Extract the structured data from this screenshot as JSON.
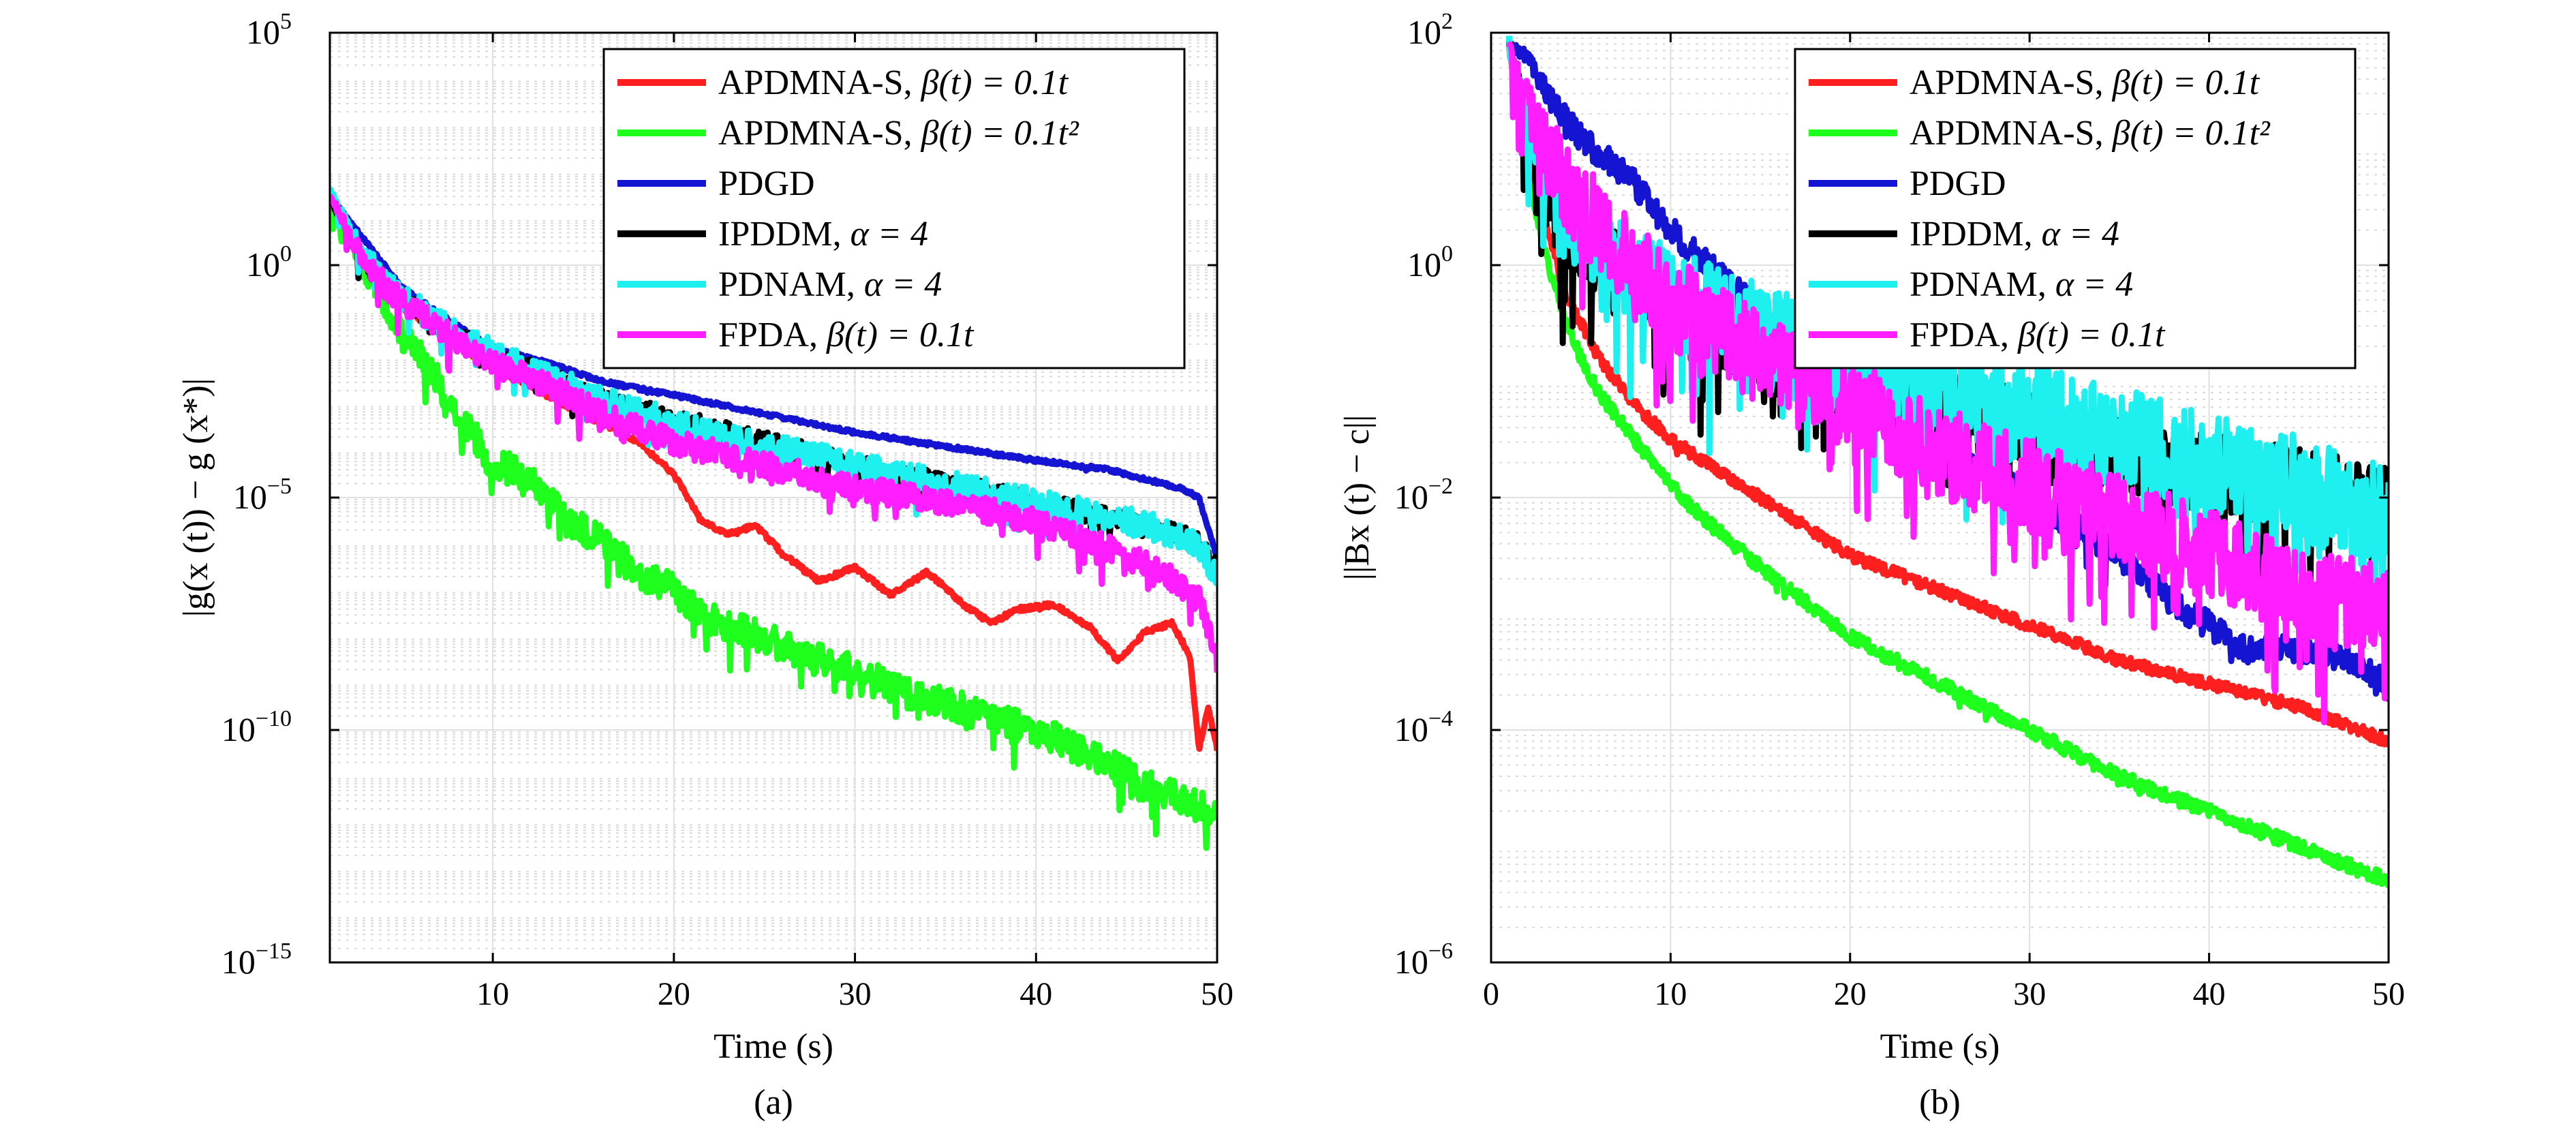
{
  "chart_data": [
    {
      "type": "line",
      "panel_label": "(a)",
      "xlabel": "Time (s)",
      "ylabel": "|g(x (t)) − g (x*)|",
      "ylog": true,
      "xlim": [
        1,
        50
      ],
      "ylim_exp": [
        -15,
        5
      ],
      "xticks": [
        10,
        20,
        30,
        40,
        50
      ],
      "yticks_exp": [
        -15,
        -10,
        -5,
        0,
        5
      ],
      "grid": true,
      "minor_grid": true,
      "legend_position": "top-right",
      "series": [
        {
          "name": "APDMNA-S, β(t) = 0.1t",
          "legend_main": "APDMNA-S, ",
          "legend_math": "β(t) = 0.1t",
          "color": "#ff1f1f",
          "x": [
            1,
            3,
            5,
            8,
            10,
            13,
            16,
            18,
            20,
            21.5,
            23,
            24.5,
            26,
            28,
            30,
            32,
            34,
            36,
            37.5,
            39,
            41,
            43,
            44.5,
            46,
            47.5,
            48.5,
            49,
            49.5,
            50
          ],
          "y_exp": [
            1.5,
            -0.1,
            -0.9,
            -1.7,
            -2.2,
            -2.8,
            -3.4,
            -3.8,
            -4.5,
            -5.5,
            -5.8,
            -5.6,
            -6.2,
            -6.8,
            -6.5,
            -7.1,
            -6.6,
            -7.3,
            -7.7,
            -7.4,
            -7.3,
            -7.8,
            -8.5,
            -7.9,
            -7.7,
            -8.4,
            -10.4,
            -9.5,
            -10.4
          ],
          "noise": 0.05
        },
        {
          "name": "APDMNA-S, β(t) = 0.1t²",
          "legend_main": "APDMNA-S, ",
          "legend_math": "β(t) = 0.1t²",
          "color": "#1eff1e",
          "x": [
            1,
            3,
            5,
            7,
            8.5,
            10,
            12,
            14,
            16,
            18,
            20,
            22,
            25,
            28,
            30,
            32,
            35,
            38,
            40,
            43,
            46,
            50
          ],
          "y_exp": [
            1.5,
            -0.1,
            -1.5,
            -2.5,
            -3.4,
            -4.3,
            -4.5,
            -5.5,
            -5.9,
            -6.6,
            -7.0,
            -7.6,
            -8.0,
            -8.5,
            -8.7,
            -9.1,
            -9.4,
            -9.8,
            -10.0,
            -10.5,
            -11.2,
            -11.8
          ],
          "noise": 0.35
        },
        {
          "name": "PDGD",
          "legend_main": "PDGD",
          "legend_math": "",
          "color": "#1414d2",
          "x": [
            1,
            3,
            5,
            8,
            10,
            13,
            16,
            20,
            25,
            30,
            35,
            40,
            44,
            46,
            48,
            49,
            50
          ],
          "y_exp": [
            1.5,
            0.5,
            -0.5,
            -1.3,
            -1.8,
            -2.1,
            -2.5,
            -2.8,
            -3.2,
            -3.6,
            -3.9,
            -4.2,
            -4.4,
            -4.6,
            -4.8,
            -5.0,
            -6.3
          ],
          "noise": 0.04
        },
        {
          "name": "IPDDM, α = 4",
          "legend_main": "IPDDM, ",
          "legend_math": "α = 4",
          "color": "#000000",
          "x": [
            1,
            3,
            5,
            8,
            10,
            13,
            16,
            20,
            25,
            30,
            35,
            40,
            45,
            48,
            49,
            50
          ],
          "y_exp": [
            1.4,
            0.0,
            -0.8,
            -1.5,
            -1.9,
            -2.4,
            -2.9,
            -3.3,
            -3.8,
            -4.3,
            -4.7,
            -5.1,
            -5.5,
            -5.8,
            -6.0,
            -6.5
          ],
          "noise": 0.22
        },
        {
          "name": "PDNAM, α = 4",
          "legend_main": "PDNAM, ",
          "legend_math": "α = 4",
          "color": "#1ef0f0",
          "x": [
            1,
            3,
            5,
            8,
            10,
            13,
            16,
            20,
            25,
            30,
            35,
            40,
            45,
            48,
            49,
            50
          ],
          "y_exp": [
            1.6,
            0.1,
            -0.7,
            -1.5,
            -1.9,
            -2.4,
            -2.9,
            -3.4,
            -3.9,
            -4.3,
            -4.7,
            -5.1,
            -5.5,
            -5.8,
            -6.1,
            -6.7
          ],
          "noise": 0.3
        },
        {
          "name": "FPDA, β(t) = 0.1t",
          "legend_main": "FPDA, ",
          "legend_math": "β(t) = 0.1t",
          "color": "#ff1eff",
          "x": [
            1,
            3,
            5,
            8,
            10,
            13,
            16,
            20,
            25,
            30,
            35,
            40,
            44,
            47,
            49,
            50
          ],
          "y_exp": [
            1.5,
            0.0,
            -0.8,
            -1.6,
            -2.1,
            -2.6,
            -3.2,
            -3.8,
            -4.3,
            -4.8,
            -5.1,
            -5.5,
            -6.1,
            -6.6,
            -7.2,
            -8.5
          ],
          "noise": 0.28
        }
      ]
    },
    {
      "type": "line",
      "panel_label": "(b)",
      "xlabel": "Time (s)",
      "ylabel": "||Bx (t) − c||",
      "ylog": true,
      "xlim": [
        0,
        50
      ],
      "ylim_exp": [
        -6,
        2
      ],
      "xticks": [
        0,
        10,
        20,
        30,
        40,
        50
      ],
      "yticks_exp": [
        -6,
        -4,
        -2,
        0,
        2
      ],
      "grid": true,
      "minor_grid": true,
      "legend_position": "top-right",
      "series": [
        {
          "name": "APDMNA-S, β(t) = 0.1t",
          "legend_main": "APDMNA-S, ",
          "legend_math": "β(t) = 0.1t",
          "color": "#ff1f1f",
          "x": [
            1,
            2,
            3,
            4,
            5,
            6,
            8,
            10,
            12,
            15,
            20,
            25,
            30,
            35,
            40,
            45,
            50
          ],
          "y_exp": [
            1.9,
            1.0,
            0.4,
            -0.2,
            -0.5,
            -0.8,
            -1.2,
            -1.5,
            -1.7,
            -2.0,
            -2.5,
            -2.8,
            -3.1,
            -3.4,
            -3.6,
            -3.8,
            -4.1
          ],
          "noise": 0.05
        },
        {
          "name": "APDMNA-S, β(t) = 0.1t²",
          "legend_main": "APDMNA-S, ",
          "legend_math": "β(t) = 0.1t²",
          "color": "#1eff1e",
          "x": [
            1,
            2,
            3,
            4,
            5,
            6,
            8,
            10,
            12,
            15,
            20,
            25,
            30,
            35,
            40,
            45,
            50
          ],
          "y_exp": [
            1.9,
            0.8,
            0.1,
            -0.4,
            -0.8,
            -1.1,
            -1.5,
            -1.9,
            -2.2,
            -2.6,
            -3.2,
            -3.6,
            -4.0,
            -4.4,
            -4.7,
            -5.0,
            -5.3
          ],
          "noise": 0.06
        },
        {
          "name": "PDGD",
          "legend_main": "PDGD",
          "legend_math": "",
          "color": "#1414d2",
          "x": [
            1,
            2,
            3,
            5,
            8,
            10,
            15,
            20,
            25,
            30,
            35,
            38,
            40,
            42,
            45,
            48,
            50
          ],
          "y_exp": [
            1.9,
            1.8,
            1.5,
            1.1,
            0.7,
            0.3,
            -0.4,
            -1.0,
            -1.5,
            -2.0,
            -2.5,
            -2.9,
            -3.1,
            -3.3,
            -3.3,
            -3.4,
            -3.6
          ],
          "noise": 0.12
        },
        {
          "name": "IPDDM, α = 4",
          "legend_main": "IPDDM, ",
          "legend_math": "α = 4",
          "color": "#000000",
          "x": [
            1,
            2,
            3,
            5,
            8,
            10,
            15,
            20,
            25,
            30,
            35,
            40,
            45,
            50
          ],
          "y_exp": [
            1.9,
            1.2,
            0.6,
            0.2,
            -0.2,
            -0.4,
            -0.7,
            -1.0,
            -1.2,
            -1.4,
            -1.6,
            -1.8,
            -1.9,
            -2.1
          ],
          "noise": 0.35
        },
        {
          "name": "PDNAM, α = 4",
          "legend_main": "PDNAM, ",
          "legend_math": "α = 4",
          "color": "#1ef0f0",
          "x": [
            1,
            2,
            3,
            5,
            8,
            10,
            15,
            20,
            25,
            30,
            35,
            40,
            45,
            50
          ],
          "y_exp": [
            1.9,
            1.3,
            0.8,
            0.3,
            -0.1,
            -0.3,
            -0.6,
            -0.9,
            -1.1,
            -1.3,
            -1.5,
            -1.7,
            -1.9,
            -2.2
          ],
          "noise": 0.45
        },
        {
          "name": "FPDA, β(t) = 0.1t",
          "legend_main": "FPDA, ",
          "legend_math": "β(t) = 0.1t",
          "color": "#ff1eff",
          "x": [
            1,
            2,
            3,
            5,
            8,
            10,
            15,
            20,
            25,
            30,
            35,
            40,
            45,
            50
          ],
          "y_exp": [
            1.9,
            1.4,
            1.0,
            0.5,
            0.0,
            -0.3,
            -0.8,
            -1.2,
            -1.6,
            -1.9,
            -2.2,
            -2.5,
            -2.8,
            -3.0
          ],
          "noise": 0.4
        }
      ]
    }
  ]
}
